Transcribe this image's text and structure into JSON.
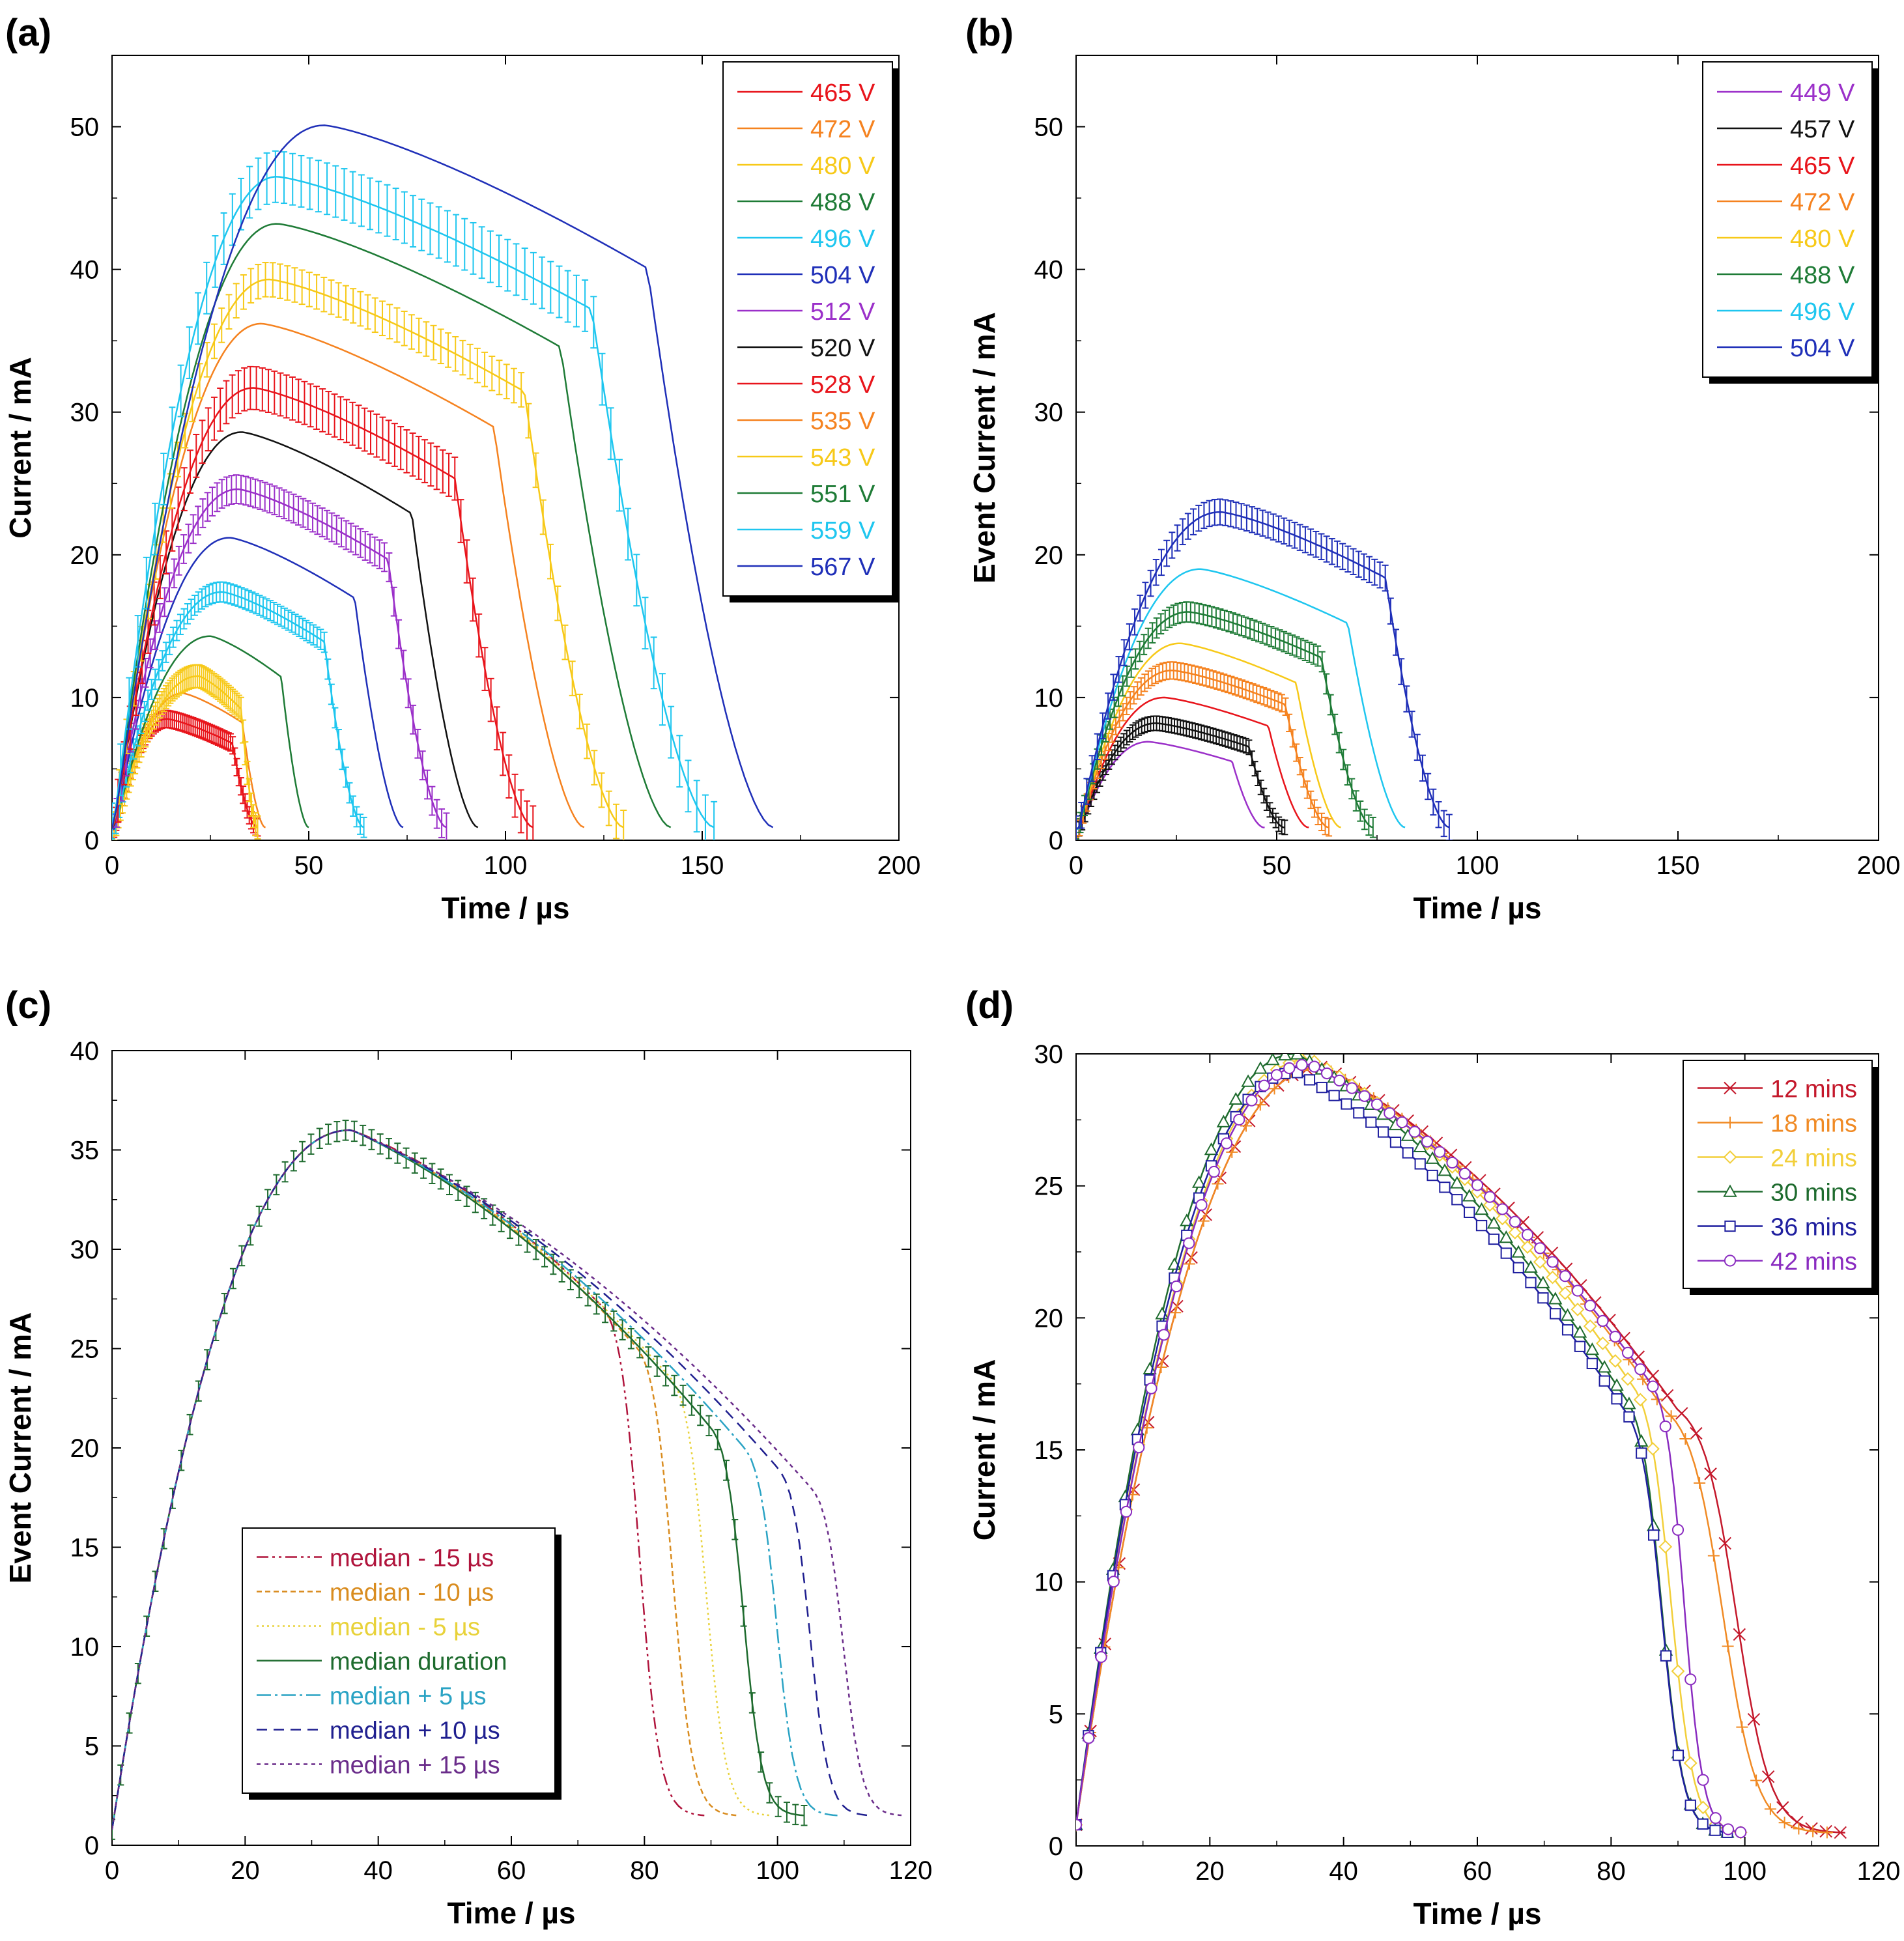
{
  "chart_data": [
    {
      "panel": "(a)",
      "type": "line",
      "xlabel": "Time / µs",
      "ylabel": "Current / mA",
      "xlim": [
        0,
        200
      ],
      "ylim": [
        0,
        55
      ],
      "xticks": [
        0,
        50,
        100,
        150,
        200
      ],
      "yticks": [
        0,
        10,
        20,
        30,
        40,
        50
      ],
      "grid": false,
      "legend_position": "top-right",
      "markers": "error bars on every second series",
      "series": [
        {
          "name": "465 V",
          "color": "#e8141b",
          "peak_x": 14,
          "peak_y": 8.5,
          "end_x": 37,
          "errorbars": true,
          "err": 0.6
        },
        {
          "name": "472 V",
          "color": "#f5821f",
          "peak_x": 18,
          "peak_y": 10.3,
          "end_x": 39,
          "errorbars": false
        },
        {
          "name": "480 V",
          "color": "#f7c918",
          "peak_x": 22,
          "peak_y": 11.5,
          "end_x": 37,
          "errorbars": true,
          "err": 0.8
        },
        {
          "name": "488 V",
          "color": "#1e7b36",
          "peak_x": 25,
          "peak_y": 14.3,
          "end_x": 50,
          "errorbars": false
        },
        {
          "name": "496 V",
          "color": "#1ec6ef",
          "peak_x": 28,
          "peak_y": 17.4,
          "end_x": 64,
          "errorbars": true,
          "err": 0.7
        },
        {
          "name": "504 V",
          "color": "#1f2fb8",
          "peak_x": 30,
          "peak_y": 21.2,
          "end_x": 74,
          "errorbars": false
        },
        {
          "name": "512 V",
          "color": "#9b30c9",
          "peak_x": 32,
          "peak_y": 24.6,
          "end_x": 85,
          "errorbars": true,
          "err": 1.0
        },
        {
          "name": "520 V",
          "color": "#111111",
          "peak_x": 33,
          "peak_y": 28.6,
          "end_x": 93,
          "errorbars": false
        },
        {
          "name": "528 V",
          "color": "#e8141b",
          "peak_x": 36,
          "peak_y": 31.7,
          "end_x": 107,
          "errorbars": true,
          "err": 1.5
        },
        {
          "name": "535 V",
          "color": "#f5821f",
          "peak_x": 38,
          "peak_y": 36.2,
          "end_x": 120,
          "errorbars": false
        },
        {
          "name": "543 V",
          "color": "#f7c918",
          "peak_x": 40,
          "peak_y": 39.3,
          "end_x": 130,
          "errorbars": true,
          "err": 1.2
        },
        {
          "name": "551 V",
          "color": "#1e7b36",
          "peak_x": 42,
          "peak_y": 43.2,
          "end_x": 142,
          "errorbars": false
        },
        {
          "name": "559 V",
          "color": "#1ec6ef",
          "peak_x": 42,
          "peak_y": 46.5,
          "end_x": 153,
          "errorbars": true,
          "err": 1.8
        },
        {
          "name": "567 V",
          "color": "#1f2fb8",
          "peak_x": 54,
          "peak_y": 50.1,
          "end_x": 168,
          "errorbars": false
        }
      ]
    },
    {
      "panel": "(b)",
      "type": "line",
      "xlabel": "Time / µs",
      "ylabel": "Event Current / mA",
      "xlim": [
        0,
        200
      ],
      "ylim": [
        0,
        55
      ],
      "xticks": [
        0,
        50,
        100,
        150,
        200
      ],
      "yticks": [
        0,
        10,
        20,
        30,
        40,
        50
      ],
      "grid": false,
      "legend_position": "top-right",
      "series": [
        {
          "name": "449 V",
          "color": "#9b30c9",
          "peak_x": 18,
          "peak_y": 6.9,
          "end_x": 47,
          "errorbars": false
        },
        {
          "name": "457 V",
          "color": "#111111",
          "peak_x": 20,
          "peak_y": 8.2,
          "end_x": 52,
          "errorbars": true,
          "err": 0.5
        },
        {
          "name": "465 V",
          "color": "#e8141b",
          "peak_x": 22,
          "peak_y": 10.0,
          "end_x": 58,
          "errorbars": false
        },
        {
          "name": "472 V",
          "color": "#f5821f",
          "peak_x": 24,
          "peak_y": 11.9,
          "end_x": 63,
          "errorbars": true,
          "err": 0.6
        },
        {
          "name": "480 V",
          "color": "#f7c918",
          "peak_x": 26,
          "peak_y": 13.8,
          "end_x": 66,
          "errorbars": false
        },
        {
          "name": "488 V",
          "color": "#1e7b36",
          "peak_x": 28,
          "peak_y": 16.0,
          "end_x": 74,
          "errorbars": true,
          "err": 0.7
        },
        {
          "name": "496 V",
          "color": "#1ec6ef",
          "peak_x": 31,
          "peak_y": 19.0,
          "end_x": 82,
          "errorbars": false
        },
        {
          "name": "504 V",
          "color": "#1f2fb8",
          "peak_x": 36,
          "peak_y": 23.0,
          "end_x": 93,
          "errorbars": true,
          "err": 0.9
        }
      ]
    },
    {
      "panel": "(c)",
      "type": "line",
      "xlabel": "Time / µs",
      "ylabel": "Event Current / mA",
      "xlim": [
        0,
        120
      ],
      "ylim": [
        0,
        40
      ],
      "xticks": [
        0,
        20,
        40,
        60,
        80,
        100,
        120
      ],
      "yticks": [
        0,
        5,
        10,
        15,
        20,
        25,
        30,
        35,
        40
      ],
      "grid": false,
      "legend_position": "bottom-left",
      "series": [
        {
          "name": "median - 15 µs",
          "color": "#b0143c",
          "dash": "18 6 4 6 4 6",
          "knee_x": 74,
          "knee_y": 27.0,
          "end_x": 89
        },
        {
          "name": "median - 10 µs",
          "color": "#d98c1f",
          "dash": "8 5",
          "knee_x": 79,
          "knee_y": 25.0,
          "end_x": 94
        },
        {
          "name": "median - 5 µs",
          "color": "#e8d23a",
          "dash": "3 5",
          "knee_x": 84,
          "knee_y": 23.5,
          "end_x": 99
        },
        {
          "name": "median duration",
          "color": "#1e6b2e",
          "dash": "",
          "knee_x": 90,
          "knee_y": 21.0,
          "end_x": 104,
          "errorbars": true
        },
        {
          "name": "median + 5 µs",
          "color": "#2aa3c4",
          "dash": "22 6 4 6",
          "knee_x": 95,
          "knee_y": 20.0,
          "end_x": 109
        },
        {
          "name": "median + 10 µs",
          "color": "#1f1f8f",
          "dash": "16 10",
          "knee_x": 100,
          "knee_y": 19.0,
          "end_x": 114
        },
        {
          "name": "median + 15 µs",
          "color": "#6a2c8a",
          "dash": "6 6",
          "knee_x": 105,
          "knee_y": 18.0,
          "end_x": 119
        }
      ],
      "peak_x": 36,
      "peak_y": 36.0
    },
    {
      "panel": "(d)",
      "type": "line",
      "xlabel": "Time / µs",
      "ylabel": "Current / mA",
      "xlim": [
        0,
        120
      ],
      "ylim": [
        0,
        30
      ],
      "xticks": [
        0,
        20,
        40,
        60,
        80,
        100,
        120
      ],
      "yticks": [
        0,
        5,
        10,
        15,
        20,
        25,
        30
      ],
      "grid": false,
      "legend_position": "top-right",
      "series": [
        {
          "name": "12 mins",
          "color": "#c4182b",
          "marker": "x",
          "peak_x": 37,
          "peak_y": 29.5,
          "knee_x": 90,
          "knee_y": 16.5,
          "end_x": 115
        },
        {
          "name": "18 mins",
          "color": "#f08a24",
          "marker": "plus",
          "peak_x": 37,
          "peak_y": 29.5,
          "knee_x": 88,
          "knee_y": 16.5,
          "end_x": 113
        },
        {
          "name": "24 mins",
          "color": "#f2cf3a",
          "marker": "diamond",
          "peak_x": 35,
          "peak_y": 29.8,
          "knee_x": 83,
          "knee_y": 17.5,
          "end_x": 100
        },
        {
          "name": "30 mins",
          "color": "#1e6b2e",
          "marker": "triangle",
          "peak_x": 33,
          "peak_y": 30.0,
          "knee_x": 82,
          "knee_y": 17.0,
          "end_x": 98
        },
        {
          "name": "36 mins",
          "color": "#1f1f9f",
          "marker": "square",
          "peak_x": 33,
          "peak_y": 29.3,
          "knee_x": 82,
          "knee_y": 16.5,
          "end_x": 98
        },
        {
          "name": "42 mins",
          "color": "#8a2cc0",
          "marker": "circle",
          "peak_x": 35,
          "peak_y": 29.6,
          "knee_x": 86,
          "knee_y": 17.5,
          "end_x": 100
        }
      ]
    }
  ]
}
